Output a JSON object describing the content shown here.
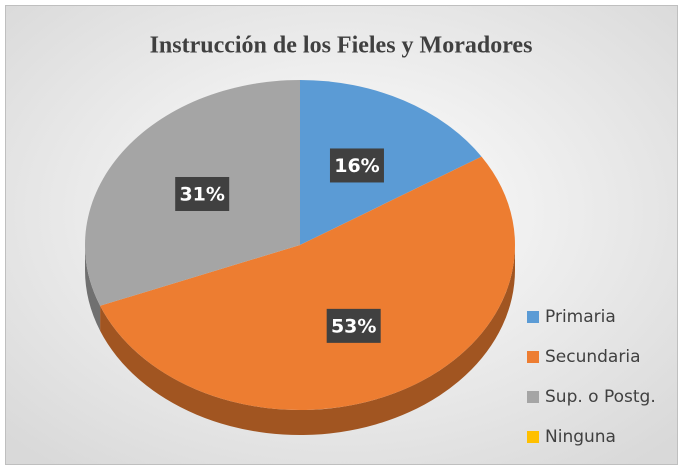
{
  "chart_data": {
    "type": "pie",
    "title": "Instrucción de los Fieles y Moradores",
    "categories": [
      "Primaria",
      "Secundaria",
      "Sup. o Postg.",
      "Ninguna"
    ],
    "values": [
      16,
      53,
      31,
      0
    ],
    "value_labels": [
      "16%",
      "53%",
      "31%",
      null
    ],
    "colors": [
      "#5b9bd5",
      "#ed7d31",
      "#a5a5a5",
      "#ffc000"
    ],
    "legend": "bottom-right"
  }
}
